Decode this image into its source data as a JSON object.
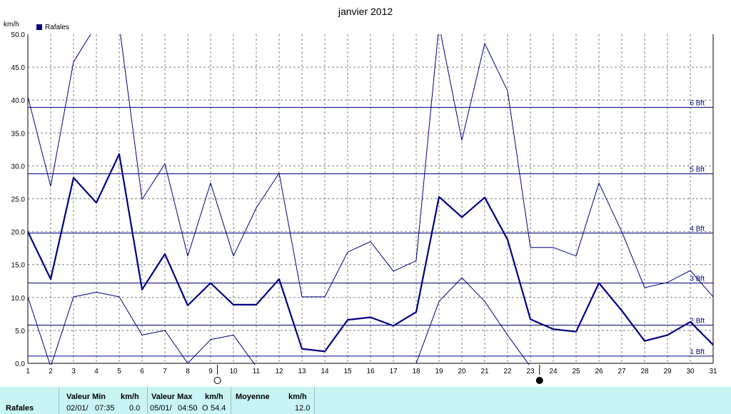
{
  "chart_data": {
    "type": "line",
    "title": "janvier 2012",
    "ylabel": "km/h",
    "ylim": [
      0,
      50
    ],
    "yticks": [
      "0.0",
      "5.0",
      "10.0",
      "15.0",
      "20.0",
      "25.0",
      "30.0",
      "35.0",
      "40.0",
      "45.0",
      "50.0"
    ],
    "x": [
      1,
      2,
      3,
      4,
      5,
      6,
      7,
      8,
      9,
      10,
      11,
      12,
      13,
      14,
      15,
      16,
      17,
      18,
      19,
      20,
      21,
      22,
      23,
      24,
      25,
      26,
      27,
      28,
      29,
      30,
      31
    ],
    "legend": [
      "Rafales"
    ],
    "grid": true,
    "series": [
      {
        "name": "Rafales",
        "values": [
          20.0,
          12.8,
          28.2,
          24.4,
          31.8,
          11.2,
          16.6,
          8.8,
          12.2,
          8.9,
          8.9,
          12.8,
          2.2,
          1.8,
          6.6,
          7.0,
          5.7,
          7.8,
          25.3,
          22.2,
          25.2,
          18.8,
          6.7,
          5.2,
          4.8,
          12.2,
          8.0,
          3.4,
          4.3,
          6.3,
          2.8
        ]
      },
      {
        "values": [
          40.5,
          26.9,
          45.8,
          51.4,
          51.4,
          24.9,
          30.3,
          16.3,
          27.4,
          16.3,
          23.6,
          28.9,
          10.1,
          10.1,
          16.9,
          18.5,
          14.0,
          15.6,
          51.4,
          33.9,
          48.6,
          41.4,
          17.6,
          17.6,
          16.3,
          27.4,
          20.0,
          11.5,
          12.3,
          14.1,
          10.1
        ]
      },
      {
        "values": [
          10.1,
          -0.5,
          10.1,
          10.8,
          10.1,
          4.3,
          5.0,
          0.0,
          3.6,
          4.3,
          -0.5,
          null,
          null,
          null,
          null,
          null,
          null,
          0.0,
          9.4,
          13.0,
          9.4,
          4.3,
          -0.5,
          null,
          null,
          null,
          null,
          null,
          null,
          null,
          null
        ]
      }
    ],
    "beaufort_lines": [
      {
        "label": "1 Bft",
        "value": 1.1
      },
      {
        "label": "2 Bft",
        "value": 5.8
      },
      {
        "label": "3 Bft",
        "value": 12.2
      },
      {
        "label": "4 Bft",
        "value": 19.8
      },
      {
        "label": "5 Bft",
        "value": 28.8
      },
      {
        "label": "6 Bft",
        "value": 38.9
      }
    ],
    "moon_markers": [
      {
        "day": 9.3,
        "phase": "full"
      },
      {
        "day": 23.4,
        "phase": "new"
      }
    ]
  },
  "footer": {
    "row_label": "Rafales",
    "min_header": "Valeur Min",
    "min_unit": "km/h",
    "min_date": "02/01/",
    "min_time": "07:35",
    "min_value": "0.0",
    "max_header": "Valeur Max",
    "max_unit": "km/h",
    "max_date": "05/01/",
    "max_time": "04:50",
    "max_flag": "O",
    "max_value": "54.4",
    "avg_header": "Moyenne",
    "avg_unit": "km/h",
    "avg_value": "12.0"
  },
  "colors": {
    "line": "#000080",
    "grid": "#808080",
    "footer_bg": "#c8f4f4"
  }
}
